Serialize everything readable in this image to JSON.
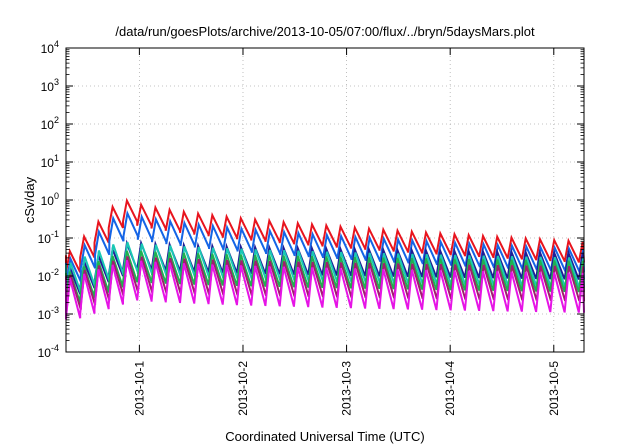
{
  "chart_data": {
    "type": "line",
    "title": "/data/run/goesPlots/archive/2013-10-05/07:00/flux/../bryn/5daysMars.plot",
    "xlabel": "Coordinated Universal Time (UTC)",
    "ylabel": "cSv/day",
    "yscale": "log",
    "ylim": [
      0.0001,
      10000
    ],
    "xlim": [
      "2013-09-30T07:00",
      "2013-10-05T07:00"
    ],
    "grid": true,
    "y_ticks": [
      {
        "mantissa": "10",
        "exp": "-4"
      },
      {
        "mantissa": "10",
        "exp": "-3"
      },
      {
        "mantissa": "10",
        "exp": "-2"
      },
      {
        "mantissa": "10",
        "exp": "-1"
      },
      {
        "mantissa": "10",
        "exp": "0"
      },
      {
        "mantissa": "10",
        "exp": "1"
      },
      {
        "mantissa": "10",
        "exp": "2"
      },
      {
        "mantissa": "10",
        "exp": "3"
      },
      {
        "mantissa": "10",
        "exp": "4"
      }
    ],
    "x_ticks": [
      "2013-10-1",
      "2013-10-2",
      "2013-10-3",
      "2013-10-4",
      "2013-10-5"
    ],
    "x_tick_dates": [
      "2013-10-01T00:00",
      "2013-10-02T00:00",
      "2013-10-03T00:00",
      "2013-10-04T00:00",
      "2013-10-05T00:00"
    ],
    "pattern": {
      "period_hours": 3.3,
      "rise_hours": 0.9,
      "note_series_shape": "sawtooth"
    },
    "series": [
      {
        "color": "#e8141e",
        "peak_start": 0.035,
        "peak_max": 1.2,
        "peak_max_time": "2013-09-30T20:00",
        "peak_end": 0.08,
        "trough_ratio": 0.28
      },
      {
        "color": "#1464e6",
        "peak_start": 0.022,
        "peak_max": 0.55,
        "peak_max_time": "2013-09-30T20:00",
        "peak_end": 0.05,
        "trough_ratio": 0.25
      },
      {
        "color": "#1e1e96",
        "peak_start": 0.015,
        "peak_max": 0.08,
        "peak_max_time": "2013-09-30T22:00",
        "peak_end": 0.04,
        "trough_ratio": 0.2
      },
      {
        "color": "#19c8b4",
        "peak_start": 0.02,
        "peak_max": 0.085,
        "peak_max_time": "2013-09-30T20:00",
        "peak_end": 0.03,
        "trough_ratio": 0.16
      },
      {
        "color": "#20b050",
        "peak_start": 0.012,
        "peak_max": 0.05,
        "peak_max_time": "2013-09-30T22:00",
        "peak_end": 0.025,
        "trough_ratio": 0.15
      },
      {
        "color": "#a01e6e",
        "peak_start": 0.01,
        "peak_max": 0.035,
        "peak_max_time": "2013-09-30T22:00",
        "peak_end": 0.018,
        "trough_ratio": 0.12
      },
      {
        "color": "#e614e6",
        "peak_start": 0.008,
        "peak_max": 0.028,
        "peak_max_time": "2013-09-30T22:00",
        "peak_end": 0.012,
        "trough_ratio": 0.09
      }
    ]
  }
}
